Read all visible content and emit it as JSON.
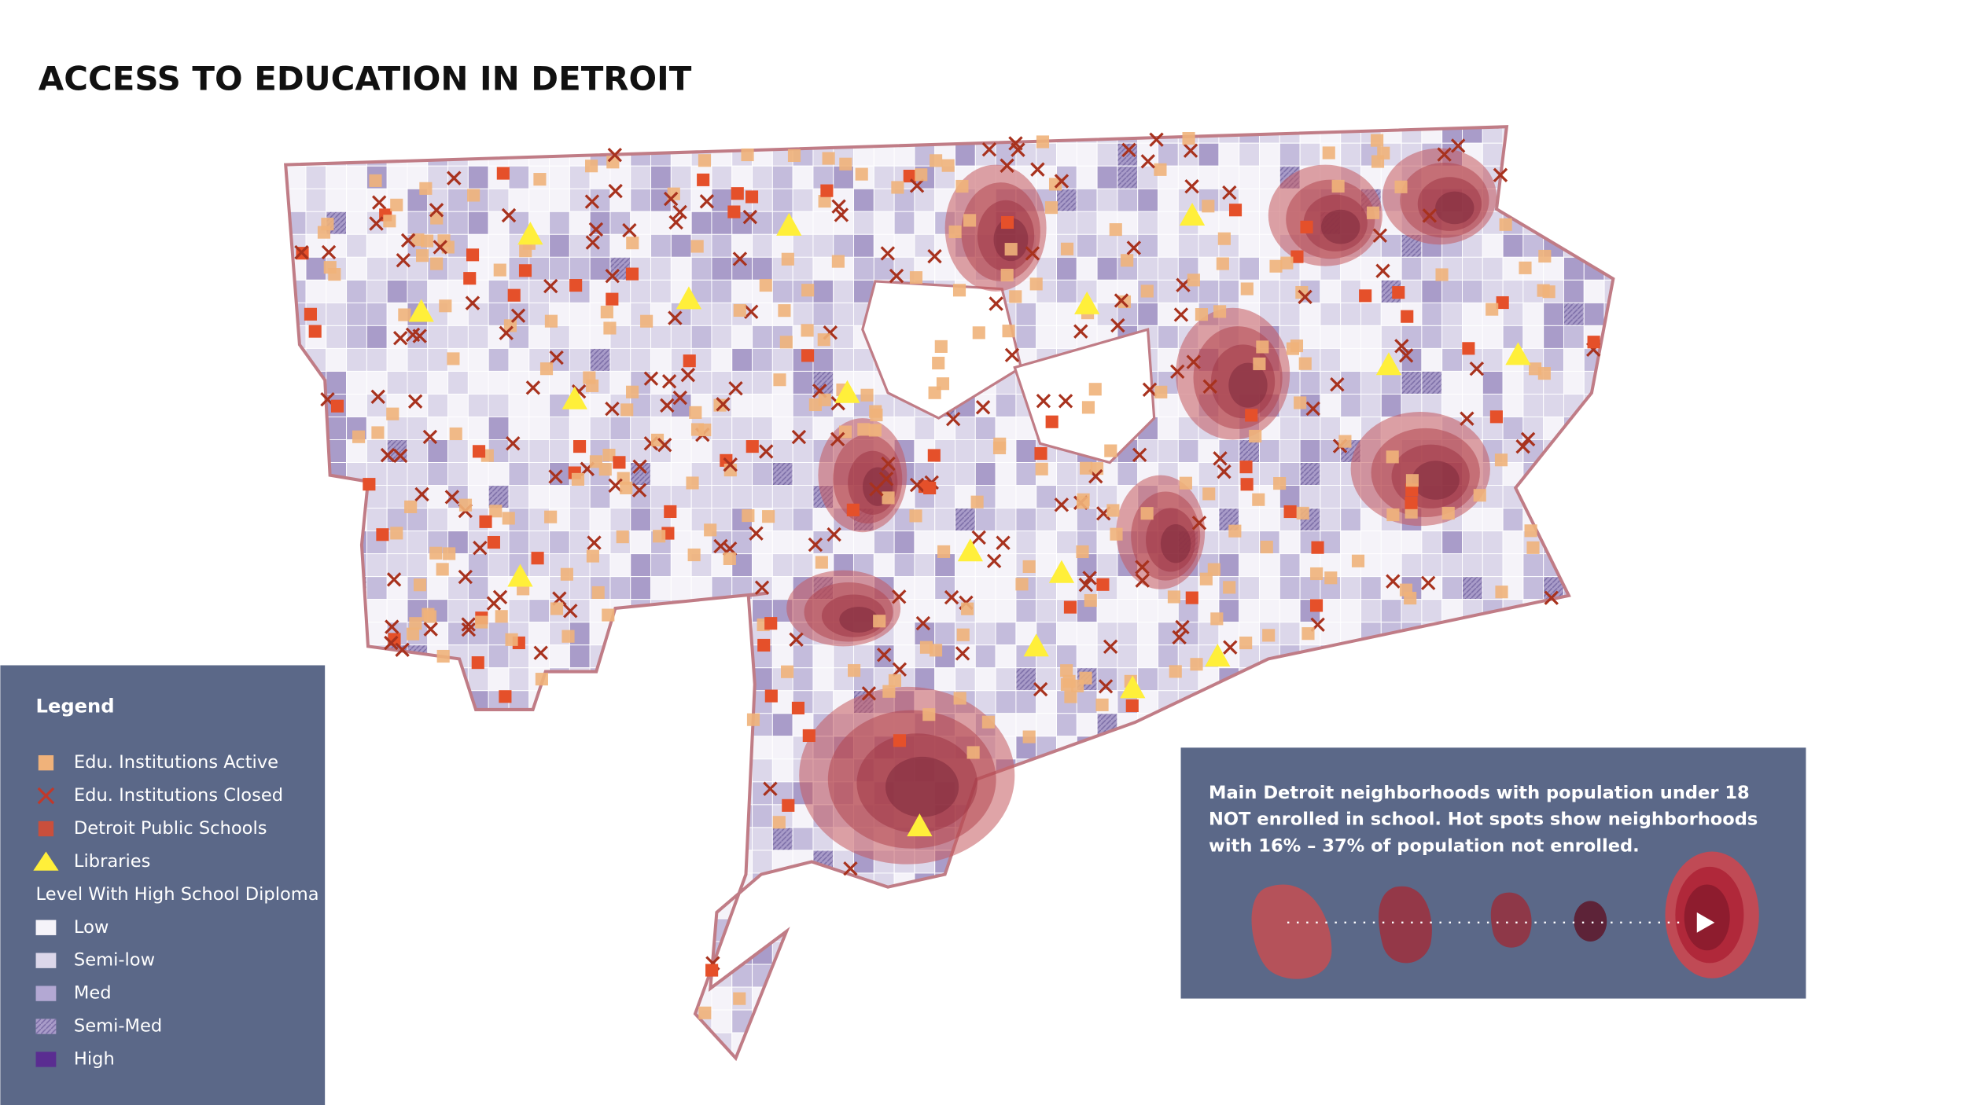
{
  "title": "ACCESS TO EDUCATION IN DETROIT",
  "legend": {
    "title": "Legend",
    "items": [
      {
        "label": "Edu. Institutions Active"
      },
      {
        "label": "Edu. Institutions Closed"
      },
      {
        "label": "Detroit Public Schools"
      },
      {
        "label": "Libraries"
      }
    ],
    "scale_title": "Level With High School Diploma",
    "scale_items": [
      {
        "label": "Low"
      },
      {
        "label": "Semi-low"
      },
      {
        "label": "Med"
      },
      {
        "label": "Semi-Med"
      },
      {
        "label": "High"
      }
    ]
  },
  "info": {
    "lines": [
      "Main Detroit neighborhoods with population under 18",
      "NOT enrolled in school. Hot spots show neighborhoods",
      "with 16% – 37% of population not enrolled."
    ]
  }
}
